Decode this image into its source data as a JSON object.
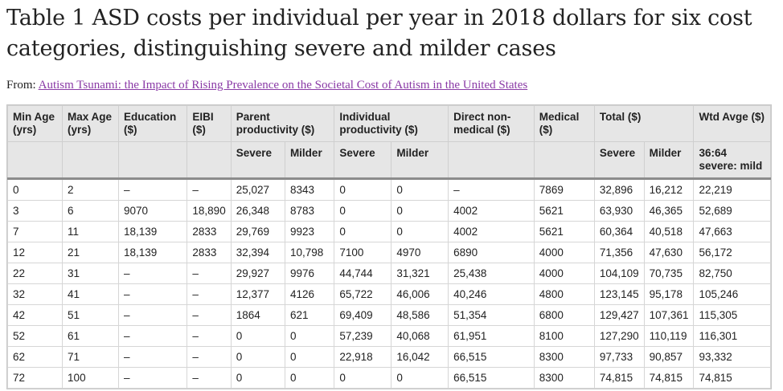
{
  "title": "Table 1 ASD costs per individual per year in 2018 dollars for six cost categories, distinguishing severe and milder cases",
  "from_label": "From:",
  "source_link": "Autism Tsunami: the Impact of Rising Prevalence on the Societal Cost of Autism in the United States",
  "headers": {
    "min_age": "Min Age (yrs)",
    "max_age": "Max Age (yrs)",
    "education": "Education ($)",
    "eibi": "EIBI ($)",
    "parent": "Parent productivity ($)",
    "individual": "Individual productivity ($)",
    "direct": "Direct non-medical ($)",
    "medical": "Medical ($)",
    "total": "Total ($)",
    "wtd": "Wtd Avge ($)",
    "severe": "Severe",
    "milder": "Milder",
    "wtd_sub": "36:64 severe: mild"
  },
  "rows": [
    [
      "0",
      "2",
      "–",
      "–",
      "25,027",
      "8343",
      "0",
      "0",
      "–",
      "7869",
      "32,896",
      "16,212",
      "22,219"
    ],
    [
      "3",
      "6",
      "9070",
      "18,890",
      "26,348",
      "8783",
      "0",
      "0",
      "4002",
      "5621",
      "63,930",
      "46,365",
      "52,689"
    ],
    [
      "7",
      "11",
      "18,139",
      "2833",
      "29,769",
      "9923",
      "0",
      "0",
      "4002",
      "5621",
      "60,364",
      "40,518",
      "47,663"
    ],
    [
      "12",
      "21",
      "18,139",
      "2833",
      "32,394",
      "10,798",
      "7100",
      "4970",
      "6890",
      "4000",
      "71,356",
      "47,630",
      "56,172"
    ],
    [
      "22",
      "31",
      "–",
      "–",
      "29,927",
      "9976",
      "44,744",
      "31,321",
      "25,438",
      "4000",
      "104,109",
      "70,735",
      "82,750"
    ],
    [
      "32",
      "41",
      "–",
      "–",
      "12,377",
      "4126",
      "65,722",
      "46,006",
      "40,246",
      "4800",
      "123,145",
      "95,178",
      "105,246"
    ],
    [
      "42",
      "51",
      "–",
      "–",
      "1864",
      "621",
      "69,409",
      "48,586",
      "51,354",
      "6800",
      "129,427",
      "107,361",
      "115,305"
    ],
    [
      "52",
      "61",
      "–",
      "–",
      "0",
      "0",
      "57,239",
      "40,068",
      "61,951",
      "8100",
      "127,290",
      "110,119",
      "116,301"
    ],
    [
      "62",
      "71",
      "–",
      "–",
      "0",
      "0",
      "22,918",
      "16,042",
      "66,515",
      "8300",
      "97,733",
      "90,857",
      "93,332"
    ],
    [
      "72",
      "100",
      "–",
      "–",
      "0",
      "0",
      "0",
      "0",
      "66,515",
      "8300",
      "74,815",
      "74,815",
      "74,815"
    ]
  ]
}
